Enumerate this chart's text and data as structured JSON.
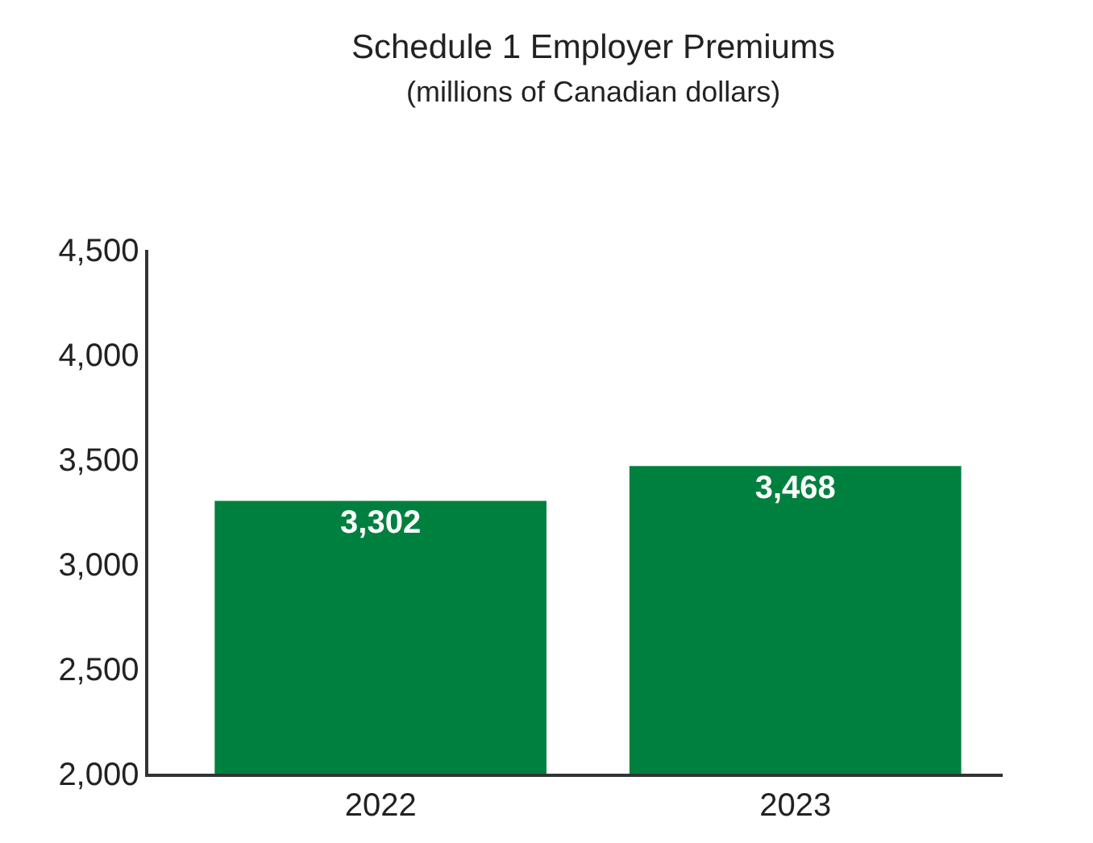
{
  "chart_data": {
    "type": "bar",
    "title": "Schedule 1 Employer Premiums",
    "subtitle": "(millions of Canadian dollars)",
    "categories": [
      "2022",
      "2023"
    ],
    "values": [
      3302,
      3468
    ],
    "color": "#00803e",
    "ylim": [
      2000,
      4500
    ],
    "yticks": [
      {
        "value": 2000,
        "label": "2,000"
      },
      {
        "value": 2500,
        "label": "2,500"
      },
      {
        "value": 3000,
        "label": "3,000"
      },
      {
        "value": 3500,
        "label": "3,500"
      },
      {
        "value": 4000,
        "label": "4,000"
      },
      {
        "value": 4500,
        "label": "4,500"
      }
    ],
    "value_labels": [
      "3,302",
      "3,468"
    ],
    "legend": false
  }
}
